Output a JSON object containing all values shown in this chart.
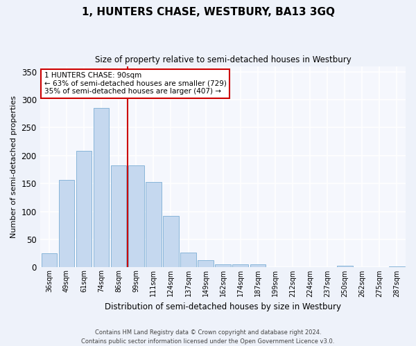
{
  "title": "1, HUNTERS CHASE, WESTBURY, BA13 3GQ",
  "subtitle": "Size of property relative to semi-detached houses in Westbury",
  "xlabel": "Distribution of semi-detached houses by size in Westbury",
  "ylabel": "Number of semi-detached properties",
  "categories": [
    "36sqm",
    "49sqm",
    "61sqm",
    "74sqm",
    "86sqm",
    "99sqm",
    "111sqm",
    "124sqm",
    "137sqm",
    "149sqm",
    "162sqm",
    "174sqm",
    "187sqm",
    "199sqm",
    "212sqm",
    "224sqm",
    "237sqm",
    "250sqm",
    "262sqm",
    "275sqm",
    "287sqm"
  ],
  "values": [
    25,
    157,
    208,
    285,
    183,
    183,
    153,
    92,
    27,
    13,
    5,
    5,
    5,
    1,
    1,
    1,
    1,
    3,
    1,
    1,
    2
  ],
  "bar_color": "#c5d8ef",
  "bar_edge_color": "#7aadd4",
  "vline_color": "#cc0000",
  "annotation_text": "1 HUNTERS CHASE: 90sqm\n← 63% of semi-detached houses are smaller (729)\n35% of semi-detached houses are larger (407) →",
  "annotation_box_color": "white",
  "annotation_box_edge": "#cc0000",
  "ylim": [
    0,
    360
  ],
  "yticks": [
    0,
    50,
    100,
    150,
    200,
    250,
    300,
    350
  ],
  "footer_line1": "Contains HM Land Registry data © Crown copyright and database right 2024.",
  "footer_line2": "Contains public sector information licensed under the Open Government Licence v3.0.",
  "bg_color": "#eef2fa",
  "plot_bg_color": "#f5f7fd"
}
